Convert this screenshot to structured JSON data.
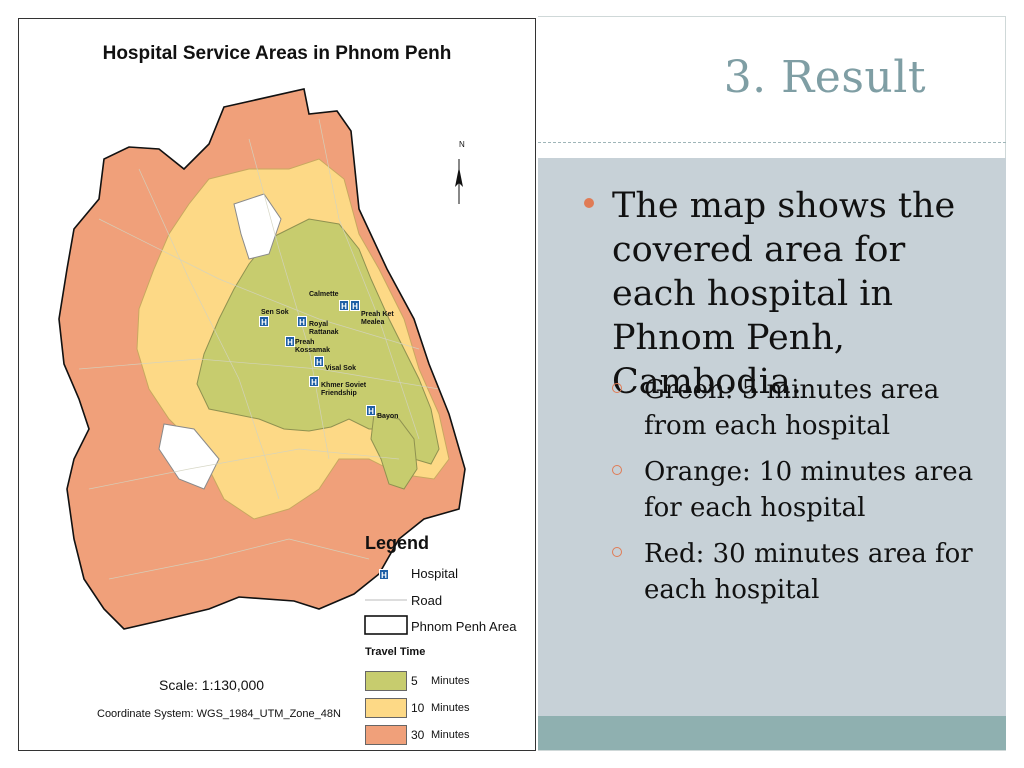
{
  "slide": {
    "title": "3. Result",
    "bullet": "The map shows the covered area for each hospital in Phnom Penh, Cambodia.",
    "sub_bullets": [
      "Green: 5 minutes area from each hospital",
      "Orange: 10 minutes area for each hospital",
      "Red: 30 minutes area for each hospital"
    ],
    "colors": {
      "title": "#7f9ea4",
      "panel": "#c7d1d7",
      "footer": "#8fb0b0",
      "bullet": "#e07b55"
    }
  },
  "map": {
    "title": "Hospital Service Areas in Phnom Penh",
    "north_label": "N",
    "scale_label": "Scale: 1:130,000",
    "coordinate_system": "Coordinate System: WGS_1984_UTM_Zone_48N",
    "hospitals": [
      "Calmette",
      "Preah Ket Mealea",
      "Sen Sok",
      "Royal Rattanak",
      "Preah Kossamak",
      "Visal Sok",
      "Khmer Soviet Friendship",
      "Bayon"
    ],
    "legend": {
      "title": "Legend",
      "items": [
        {
          "label": "Hospital",
          "icon": "hospital-icon"
        },
        {
          "label": "Road",
          "icon": "road-line"
        },
        {
          "label": "Phnom Penh Area",
          "icon": "boundary-box"
        }
      ],
      "travel_time_title": "Travel Time",
      "travel_times": [
        {
          "value": "5",
          "unit": "Minutes",
          "color": "#c7cc6e"
        },
        {
          "value": "10",
          "unit": "Minutes",
          "color": "#fdd986"
        },
        {
          "value": "30",
          "unit": "Minutes",
          "color": "#f0a07a"
        }
      ]
    },
    "hospital_icon_glyph": "H"
  }
}
